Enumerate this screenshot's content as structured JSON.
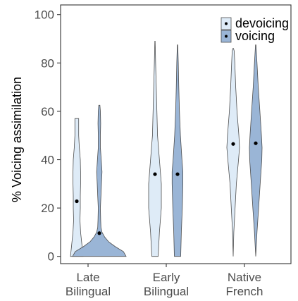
{
  "chart_data": {
    "type": "violin",
    "title": "",
    "xlabel": "",
    "ylabel": "% Voicing assimilation",
    "ylim": [
      -3,
      104
    ],
    "yticks": [
      0,
      20,
      40,
      60,
      80,
      100
    ],
    "grid": false,
    "legend_position": "top-right",
    "categories": [
      {
        "line1": "Late",
        "line2": "Bilingual"
      },
      {
        "line1": "Early",
        "line2": "Bilingual"
      },
      {
        "line1": "Native",
        "line2": "French"
      }
    ],
    "series": [
      {
        "name": "devoicing",
        "color": "#deebf7",
        "means": [
          22.8,
          34.0,
          46.5
        ],
        "violins": [
          [
            [
              0,
              1.0
            ],
            [
              5,
              0.8
            ],
            [
              10,
              0.6
            ],
            [
              15,
              0.5
            ],
            [
              20,
              0.55
            ],
            [
              25,
              0.55
            ],
            [
              30,
              0.6
            ],
            [
              35,
              0.6
            ],
            [
              40,
              0.55
            ],
            [
              45,
              0.4
            ],
            [
              50,
              0.3
            ],
            [
              55,
              0.3
            ],
            [
              57,
              0.3
            ]
          ],
          [
            [
              0,
              0.5
            ],
            [
              10,
              0.7
            ],
            [
              20,
              1.0
            ],
            [
              30,
              1.0
            ],
            [
              40,
              0.7
            ],
            [
              50,
              0.4
            ],
            [
              60,
              0.3
            ],
            [
              70,
              0.2
            ],
            [
              80,
              0.1
            ],
            [
              89,
              0.02
            ]
          ],
          [
            [
              0,
              0.0
            ],
            [
              10,
              0.1
            ],
            [
              20,
              0.3
            ],
            [
              30,
              0.5
            ],
            [
              40,
              0.85
            ],
            [
              45,
              1.0
            ],
            [
              50,
              0.9
            ],
            [
              60,
              0.6
            ],
            [
              70,
              0.4
            ],
            [
              80,
              0.25
            ],
            [
              85,
              0.15
            ],
            [
              86,
              0.05
            ]
          ]
        ]
      },
      {
        "name": "voicing",
        "color": "#9ab5d6",
        "means": [
          9.6,
          34.0,
          46.8
        ],
        "violins": [
          [
            [
              0,
              1.0
            ],
            [
              2,
              0.9
            ],
            [
              4,
              0.6
            ],
            [
              6,
              0.35
            ],
            [
              8,
              0.2
            ],
            [
              10,
              0.1
            ],
            [
              12,
              0.06
            ],
            [
              15,
              0.05
            ],
            [
              20,
              0.04
            ],
            [
              25,
              0.06
            ],
            [
              30,
              0.08
            ],
            [
              35,
              0.1
            ],
            [
              40,
              0.07
            ],
            [
              45,
              0.04
            ],
            [
              50,
              0.04
            ],
            [
              55,
              0.05
            ],
            [
              60,
              0.04
            ],
            [
              62.5,
              0.02
            ]
          ],
          [
            [
              0,
              0.5
            ],
            [
              10,
              0.6
            ],
            [
              20,
              0.75
            ],
            [
              30,
              0.85
            ],
            [
              35,
              0.85
            ],
            [
              40,
              0.7
            ],
            [
              50,
              0.45
            ],
            [
              60,
              0.3
            ],
            [
              70,
              0.2
            ],
            [
              80,
              0.12
            ],
            [
              87.5,
              0.03
            ]
          ],
          [
            [
              0,
              0.0
            ],
            [
              5,
              0.1
            ],
            [
              10,
              0.2
            ],
            [
              20,
              0.45
            ],
            [
              30,
              0.7
            ],
            [
              40,
              0.95
            ],
            [
              45,
              1.0
            ],
            [
              50,
              0.9
            ],
            [
              60,
              0.65
            ],
            [
              70,
              0.4
            ],
            [
              80,
              0.2
            ],
            [
              87.5,
              0.03
            ]
          ]
        ]
      }
    ]
  }
}
